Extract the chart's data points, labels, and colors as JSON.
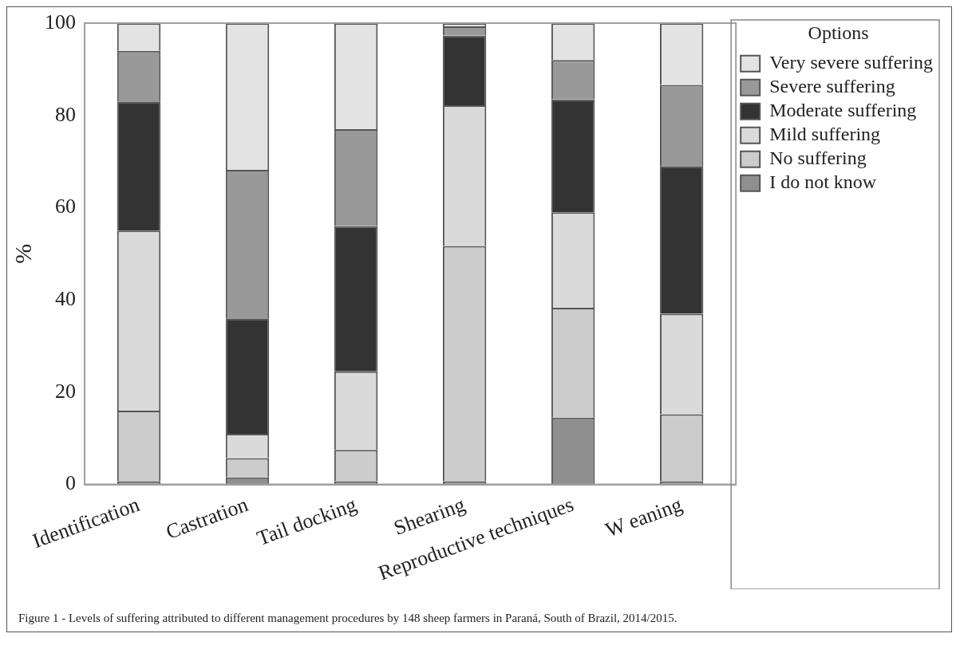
{
  "chart_data": {
    "type": "bar",
    "stacked": true,
    "ylabel": "%",
    "legend_title": "Options",
    "legend": "top right",
    "grid": false,
    "categories": [
      "Identification",
      "Castration",
      "Tail docking",
      "Shearing",
      "Reproductive techniques",
      "W eaning"
    ],
    "ylim": [
      0,
      100
    ],
    "yticks": [
      0,
      20,
      40,
      60,
      80,
      100
    ],
    "series": [
      {
        "name": "I do not know",
        "color": "#8f8f8f",
        "values": [
          0.7,
          1.5,
          0.7,
          0.7,
          14.5,
          0.7
        ]
      },
      {
        "name": "No suffering",
        "color": "#cccccc",
        "values": [
          15.3,
          4.2,
          6.8,
          51,
          23.8,
          14.5
        ]
      },
      {
        "name": "Mild suffering",
        "color": "#dadada",
        "values": [
          39,
          5.3,
          17,
          30.5,
          20.7,
          21.8
        ]
      },
      {
        "name": "Moderate suffering",
        "color": "#333333",
        "values": [
          28,
          25,
          31.5,
          15.1,
          24.5,
          32
        ]
      },
      {
        "name": "Severe suffering",
        "color": "#999999",
        "values": [
          11,
          32.2,
          21,
          2,
          8.5,
          17.6
        ]
      },
      {
        "name": "Very severe suffering",
        "color": "#e3e3e3",
        "values": [
          6,
          31.8,
          23,
          0.7,
          8,
          13.4
        ]
      }
    ],
    "annotations": [
      "Figure 1 - Levels of suffering attributed to different management procedures by 148 sheep farmers in Paraná, South of Brazil, 2014/2015."
    ]
  }
}
